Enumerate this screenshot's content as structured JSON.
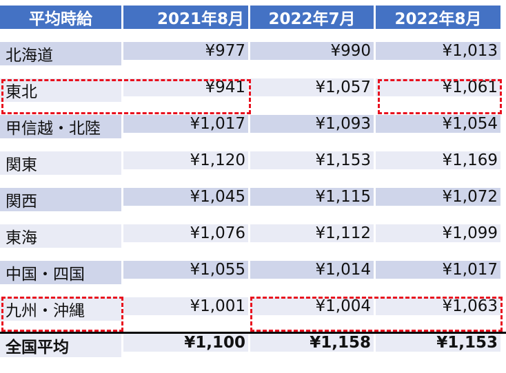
{
  "table": {
    "headers": [
      "平均時給",
      "2021年8月",
      "2022年7月",
      "2022年8月"
    ],
    "rows": [
      {
        "region": "北海道",
        "values": [
          "¥977",
          "¥990",
          "¥1,013"
        ]
      },
      {
        "region": "東北",
        "values": [
          "¥941",
          "¥1,057",
          "¥1,061"
        ]
      },
      {
        "region": "甲信越・北陸",
        "values": [
          "¥1,017",
          "¥1,093",
          "¥1,054"
        ]
      },
      {
        "region": "関東",
        "values": [
          "¥1,120",
          "¥1,153",
          "¥1,169"
        ]
      },
      {
        "region": "関西",
        "values": [
          "¥1,045",
          "¥1,115",
          "¥1,072"
        ]
      },
      {
        "region": "東海",
        "values": [
          "¥1,076",
          "¥1,112",
          "¥1,099"
        ]
      },
      {
        "region": "中国・四国",
        "values": [
          "¥1,055",
          "¥1,014",
          "¥1,017"
        ]
      },
      {
        "region": "九州・沖縄",
        "values": [
          "¥1,001",
          "¥1,004",
          "¥1,063"
        ]
      }
    ],
    "total": {
      "region": "全国平均",
      "values": [
        "¥1,100",
        "¥1,158",
        "¥1,153"
      ]
    }
  },
  "colors": {
    "header_bg": "#4472C4",
    "row_dark": "#CFD5EA",
    "row_light": "#E9EBF5",
    "highlight_border": "#E8101E"
  }
}
